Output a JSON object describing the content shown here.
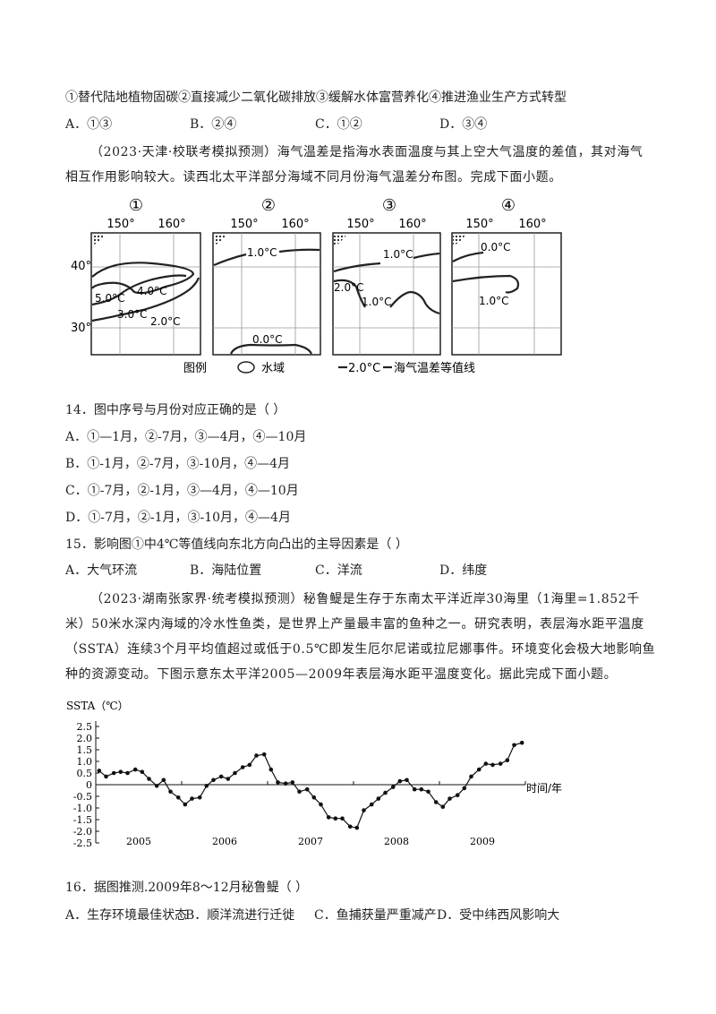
{
  "intro_line": "①替代陆地植物固碳②直接减少二氧化碳排放③缓解水体富营养化④推进渔业生产方式转型",
  "q13_options": [
    "A．①③",
    "B．②④",
    "C．①②",
    "D．③④"
  ],
  "passage1": "（2023·天津·校联考模拟预测）海气温差是指海水表面温度与其上空大气温度的差值，其对海气相互作用影响较大。读西北太平洋部分海域不同月份海气温差分布图。完成下面小题。",
  "maps": {
    "panels": [
      {
        "label": "①",
        "lon1": "150°",
        "lon2": "160°",
        "isolines": [
          "5.0°C",
          "4.0°C",
          "3.0°C",
          "2.0°C"
        ]
      },
      {
        "label": "②",
        "lon1": "150°",
        "lon2": "160°",
        "isolines": [
          "1.0°C",
          "0.0°C"
        ]
      },
      {
        "label": "③",
        "lon1": "150°",
        "lon2": "160°",
        "isolines": [
          "1.0°C",
          "2.0°C",
          "1.0°C"
        ]
      },
      {
        "label": "④",
        "lon1": "150°",
        "lon2": "160°",
        "isolines": [
          "0.0°C",
          "1.0°C"
        ]
      }
    ],
    "lat_labels": [
      "40°",
      "30°"
    ],
    "legend": {
      "title": "图例",
      "water": "水域",
      "isoline_sample": "2.0°C",
      "isoline_text": "海气温差等值线"
    }
  },
  "q14": {
    "stem": "14．图中序号与月份对应正确的是（    ）",
    "options": [
      "A．①—1月，②-7月，③—4月，④—10月",
      "B．①-1月，②-7月，③-10月，④—4月",
      "C．①-7月，②-1月，③—4月，④—10月",
      "D．①-7月，②-1月，③-10月，④—4月"
    ]
  },
  "q15": {
    "stem": "15．影响图①中4℃等值线向东北方向凸出的主导因素是（    ）",
    "options": [
      "A．大气环流",
      "B．海陆位置",
      "C．洋流",
      "D．纬度"
    ]
  },
  "passage2": "（2023·湖南张家界·统考模拟预测）秘鲁鳀是生存于东南太平洋近岸30海里（1海里=1.852千米）50米水深内海域的冷水性鱼类，是世界上产量最丰富的鱼种之一。研究表明，表层海水距平温度（SSTA）连续3个月平均值超过或低于0.5℃即发生厄尔尼诺或拉尼娜事件。环境变化会极大地影响鱼种的资源变动。下图示意东太平洋2005—2009年表层海水距平温度变化。据此完成下面小题。",
  "chart_data": {
    "type": "line",
    "ylabel": "SSTA（℃）",
    "xlabel": "时间/年",
    "yticks": [
      "2.5",
      "2.0",
      "1.5",
      "1.0",
      "0.5",
      "0",
      "-0.5",
      "-1.0",
      "-1.5",
      "-2.0",
      "-2.5"
    ],
    "ylim": [
      -2.5,
      2.5
    ],
    "xlim": [
      2004.5,
      2009.5
    ],
    "year_labels": [
      "2005",
      "2006",
      "2007",
      "2008",
      "2009"
    ],
    "x": [
      2004.54,
      2004.62,
      2004.71,
      2004.79,
      2004.87,
      2004.96,
      2005.04,
      2005.12,
      2005.21,
      2005.29,
      2005.37,
      2005.46,
      2005.54,
      2005.62,
      2005.71,
      2005.79,
      2005.87,
      2005.96,
      2006.04,
      2006.12,
      2006.21,
      2006.29,
      2006.37,
      2006.46,
      2006.54,
      2006.62,
      2006.71,
      2006.79,
      2006.87,
      2006.96,
      2007.04,
      2007.12,
      2007.21,
      2007.29,
      2007.37,
      2007.46,
      2007.54,
      2007.62,
      2007.71,
      2007.79,
      2007.87,
      2007.96,
      2008.04,
      2008.12,
      2008.21,
      2008.29,
      2008.37,
      2008.46,
      2008.54,
      2008.62,
      2008.71,
      2008.79,
      2008.87,
      2008.96,
      2009.04,
      2009.12,
      2009.21,
      2009.29,
      2009.37,
      2009.46
    ],
    "values": [
      0.6,
      0.35,
      0.5,
      0.55,
      0.5,
      0.65,
      0.55,
      0.25,
      -0.05,
      0.2,
      -0.3,
      -0.55,
      -0.85,
      -0.6,
      -0.55,
      -0.05,
      0.2,
      0.35,
      0.25,
      0.5,
      0.75,
      0.85,
      1.25,
      1.3,
      0.65,
      0.1,
      0.05,
      0.1,
      -0.3,
      -0.2,
      -0.55,
      -0.85,
      -1.4,
      -1.45,
      -1.45,
      -1.8,
      -1.85,
      -1.1,
      -0.85,
      -0.6,
      -0.35,
      -0.1,
      0.15,
      0.2,
      -0.2,
      -0.2,
      -0.3,
      -0.75,
      -0.95,
      -0.6,
      -0.45,
      -0.15,
      0.35,
      0.65,
      0.9,
      0.85,
      0.9,
      1.05,
      1.7,
      1.8
    ]
  },
  "q16": {
    "stem": "16．据图推测.2009年8～12月秘鲁鳀（    ）",
    "options": [
      "A．生存环境最佳状态",
      "B．顺洋流进行迁徙",
      "C．鱼捕获量严重减产",
      "D．受中纬西风影响大"
    ]
  }
}
